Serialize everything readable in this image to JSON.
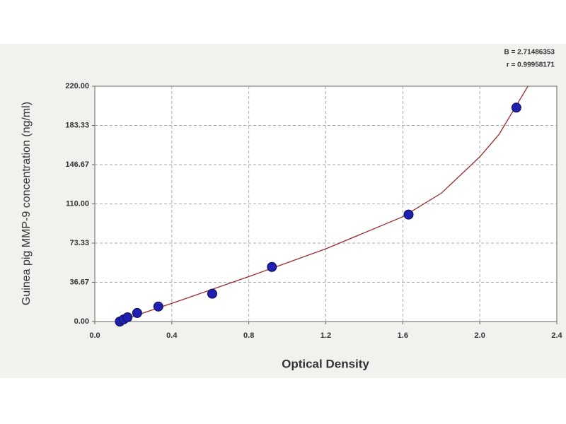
{
  "chart_data": {
    "type": "scatter",
    "x_label": "Optical Density",
    "y_label": "Guinea pig MMP-9 concentration (ng/ml)",
    "annotations": [
      "B = 2.71486353",
      "r = 0.99958171"
    ],
    "xlim": [
      0,
      2.4
    ],
    "xticks": [
      {
        "value": 0,
        "label": "0.0"
      },
      0.4,
      0.8,
      1.2,
      1.6,
      {
        "value": 2,
        "label": "2.0"
      },
      2.4
    ],
    "ylim": [
      0,
      220
    ],
    "yticks": [
      {
        "value": 0,
        "label": "0.00"
      },
      36.67,
      73.33,
      {
        "value": 110,
        "label": "110.00"
      },
      146.67,
      183.33,
      {
        "value": 220,
        "label": "220.00"
      }
    ],
    "grid": true,
    "points": {
      "color": "#1f1fb0",
      "x": [
        0.13,
        0.15,
        0.17,
        0.22,
        0.33,
        0.61,
        0.92,
        1.63,
        2.19
      ],
      "values": [
        0,
        2,
        4,
        8,
        14,
        26,
        51,
        100,
        200
      ]
    },
    "curve": {
      "color": "#9a2a2a",
      "x": [
        0.12,
        0.4,
        0.8,
        1.2,
        1.6,
        1.8,
        2.0,
        2.1,
        2.25
      ],
      "values": [
        0,
        17,
        42,
        68,
        98,
        120,
        154,
        175,
        220
      ]
    }
  }
}
